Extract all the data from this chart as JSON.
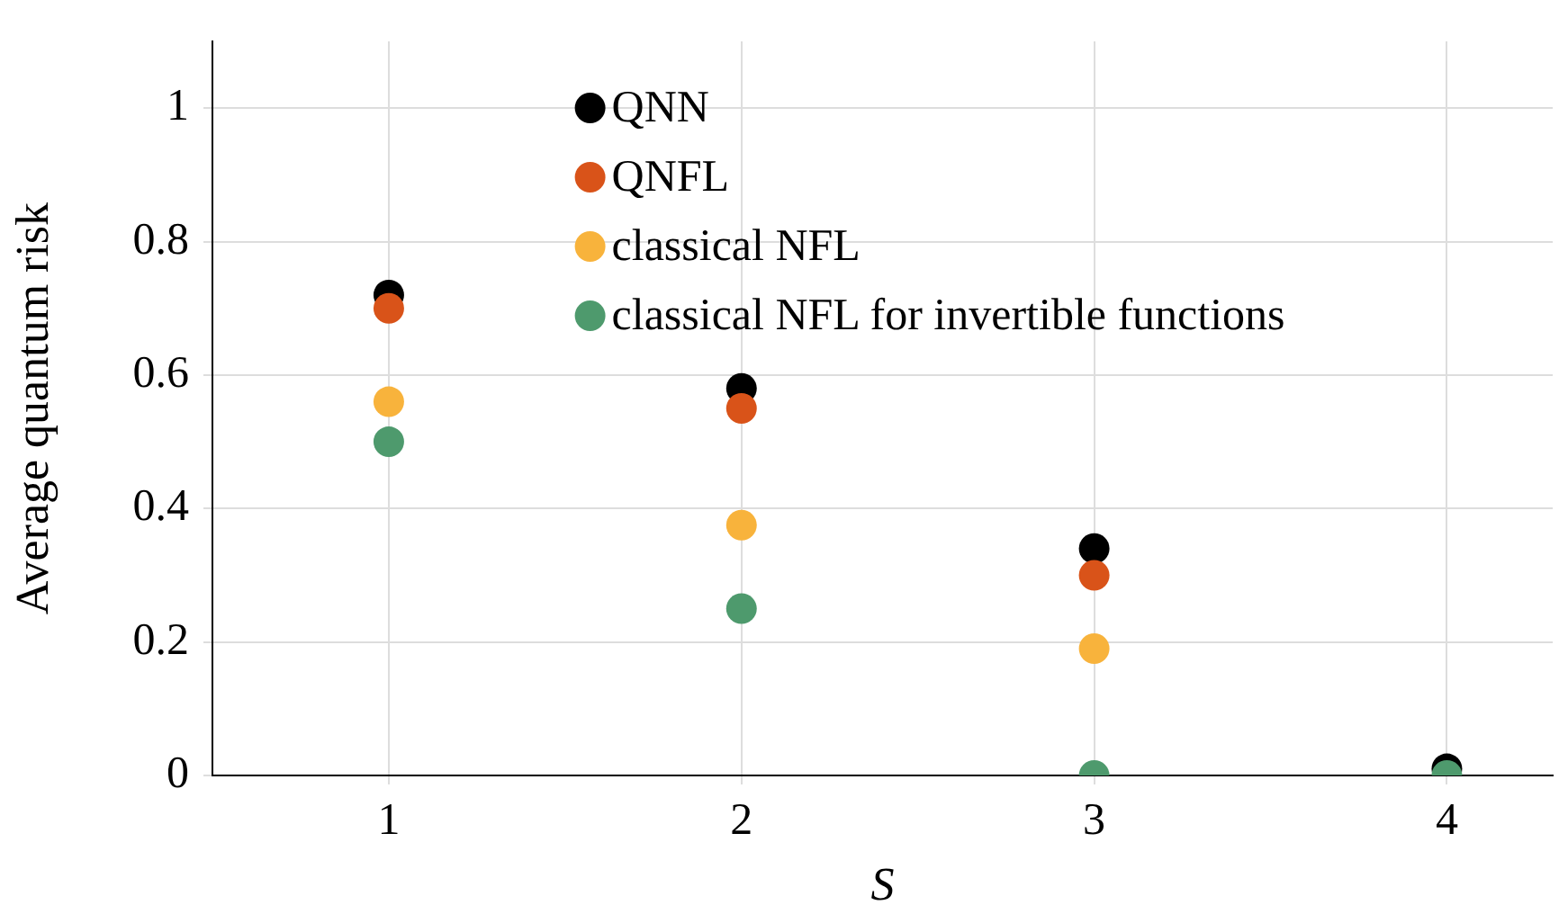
{
  "chart_data": {
    "type": "scatter",
    "xlabel": "S",
    "ylabel": "Average quantum risk",
    "x": [
      1,
      2,
      3,
      4
    ],
    "xlim": [
      0.5,
      4.3
    ],
    "xticks": [
      1,
      2,
      3,
      4
    ],
    "ylim": [
      0,
      1.1
    ],
    "yticks": [
      0,
      0.2,
      0.4,
      0.6,
      0.8,
      1
    ],
    "grid": true,
    "legend": "top",
    "marker": "circle",
    "series": [
      {
        "name": "QNN",
        "color": "#000000",
        "values": [
          0.72,
          0.58,
          0.34,
          0.01
        ]
      },
      {
        "name": "QNFL",
        "color": "#d95319",
        "values": [
          0.7,
          0.55,
          0.3,
          null
        ]
      },
      {
        "name": "classical NFL",
        "color": "#f8b33c",
        "values": [
          0.56,
          0.375,
          0.19,
          null
        ]
      },
      {
        "name": "classical NFL for invertible functions",
        "color": "#4e9a6d",
        "values": [
          0.5,
          0.25,
          0,
          0
        ]
      }
    ]
  }
}
